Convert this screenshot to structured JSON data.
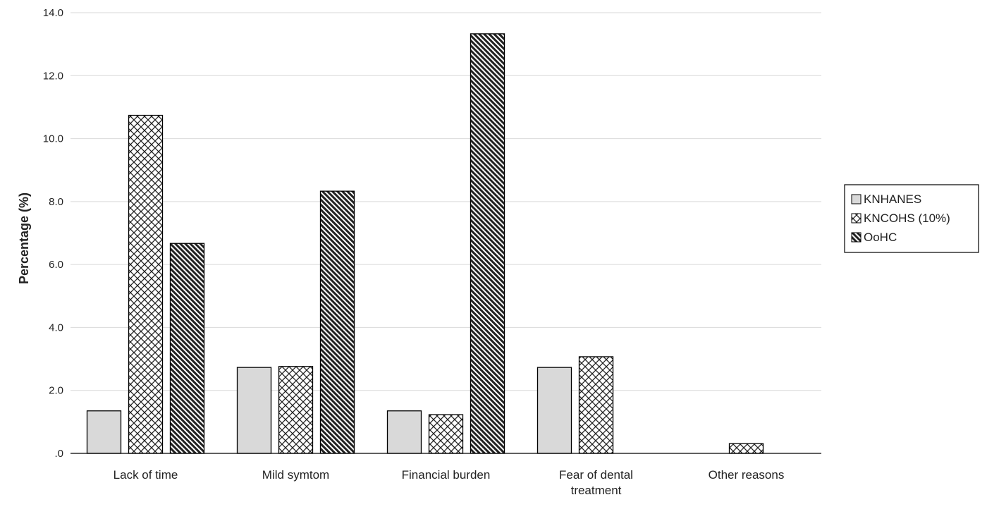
{
  "chart_data": {
    "type": "bar",
    "title": "",
    "xlabel": "",
    "ylabel": "Percentage (%)",
    "ylim": [
      0,
      14
    ],
    "yticks": [
      0,
      2,
      4,
      6,
      8,
      10,
      12,
      14
    ],
    "ytick_labels": [
      ".0",
      "2.0",
      "4.0",
      "6.0",
      "8.0",
      "10.0",
      "12.0",
      "14.0"
    ],
    "grid": true,
    "legend_position": "right",
    "categories": [
      [
        "Lack of time"
      ],
      [
        "Mild symtom"
      ],
      [
        "Financial burden"
      ],
      [
        "Fear of dental",
        "treatment"
      ],
      [
        "Other reasons"
      ]
    ],
    "series": [
      {
        "name": "KNHANES",
        "values": [
          1.35,
          2.73,
          1.35,
          2.73,
          0.0
        ],
        "pattern": "solid-light-gray"
      },
      {
        "name": "KNCOHS (10%)",
        "values": [
          10.74,
          2.76,
          1.23,
          3.07,
          0.31
        ],
        "pattern": "crosshatch"
      },
      {
        "name": "OoHC",
        "values": [
          6.67,
          8.33,
          13.33,
          0.0,
          0.0
        ],
        "pattern": "diagonal-dark"
      }
    ],
    "annotations": [],
    "colors": {
      "light_fill": "#d9d9d9",
      "hatch_stroke": "#222222",
      "grid": "#d9d9d9",
      "axis": "#000000"
    }
  }
}
